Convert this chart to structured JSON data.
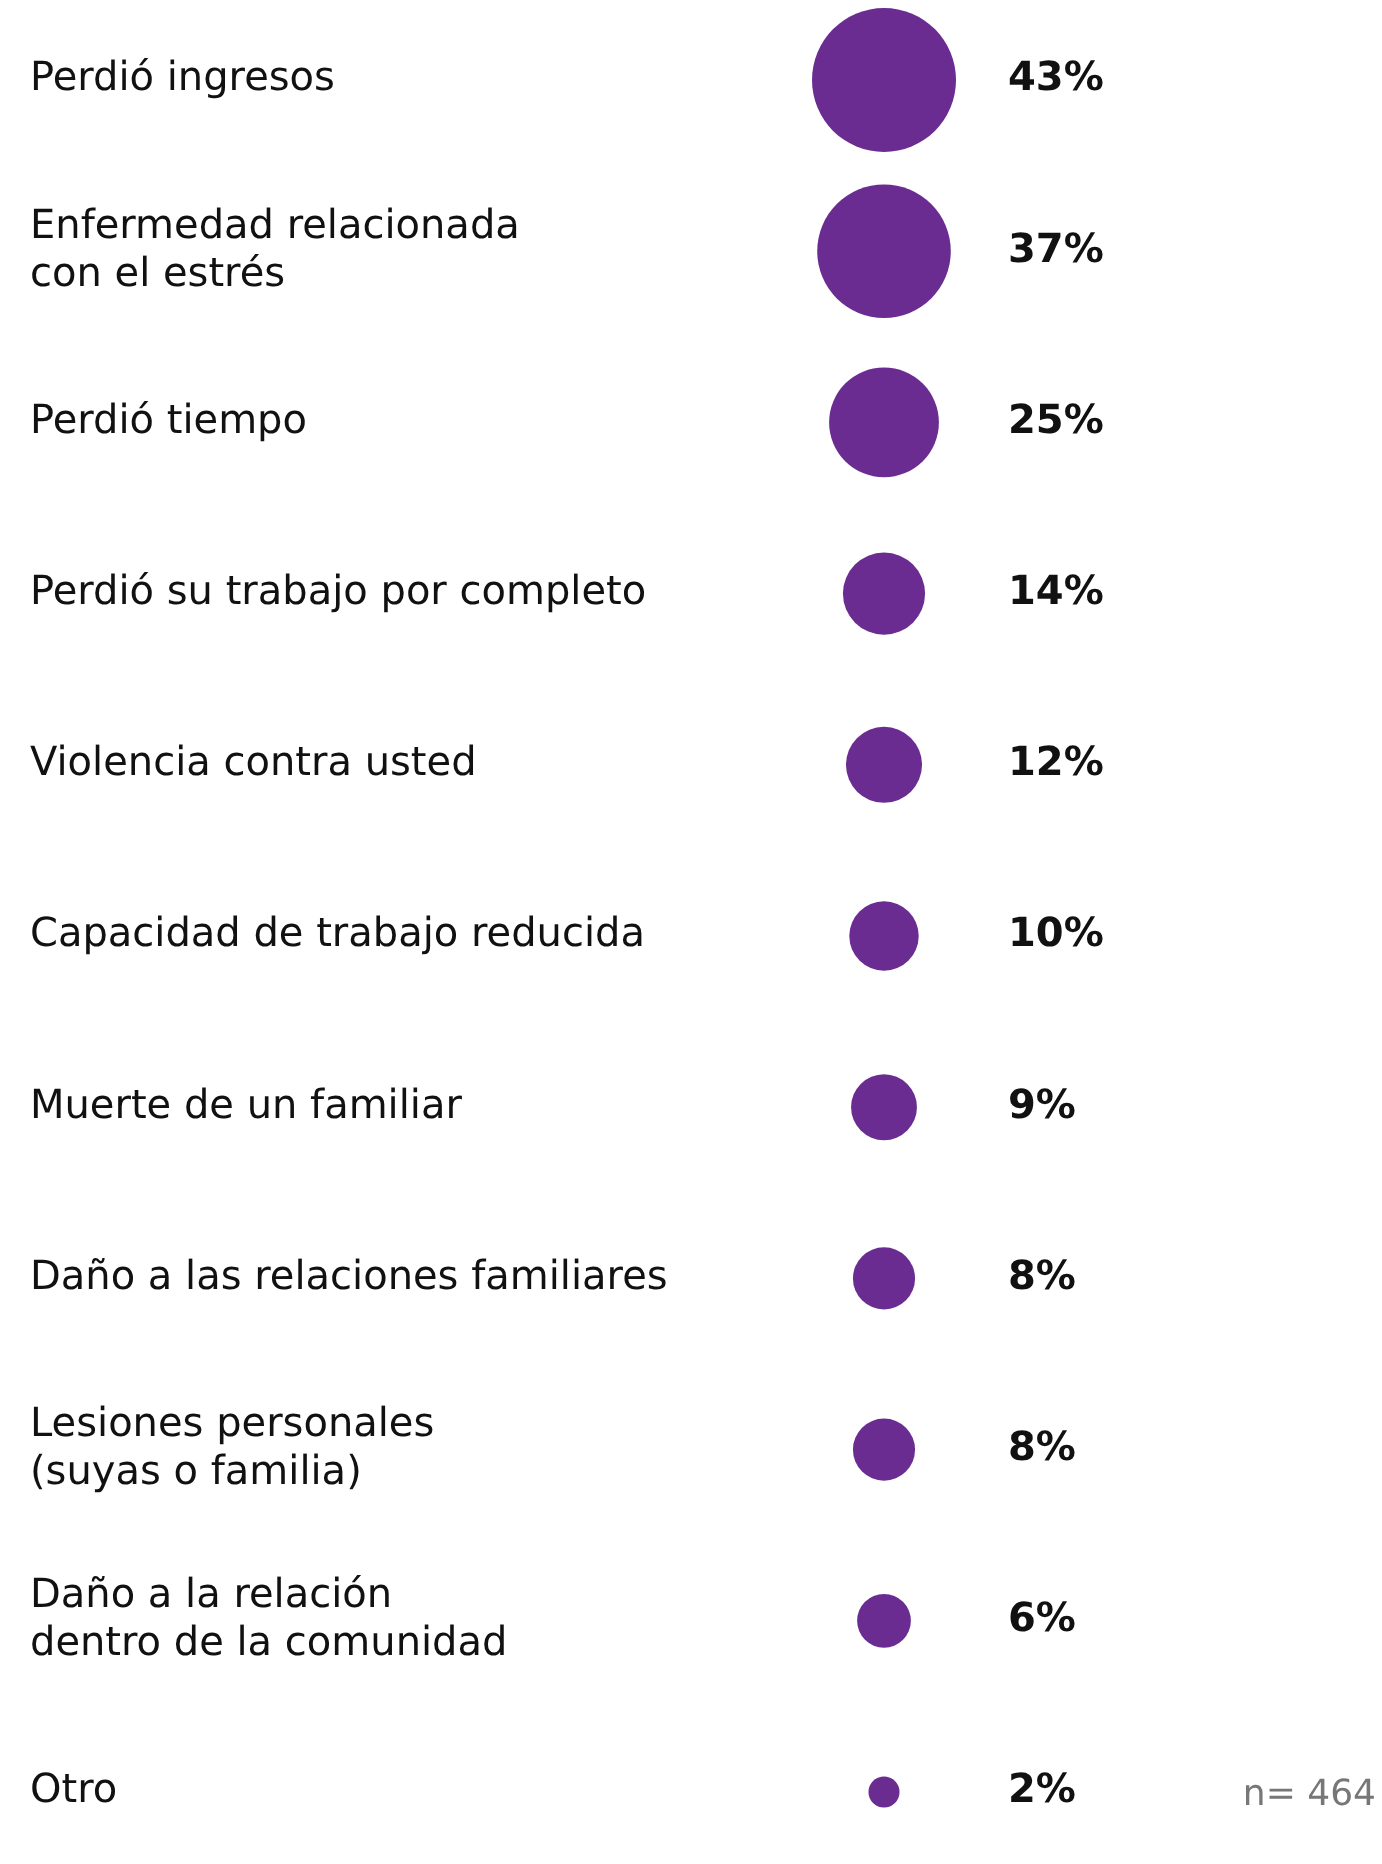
{
  "chart_data": {
    "type": "other",
    "categories": [
      "Perdió ingresos",
      "Enfermedad relacionada\ncon el estrés",
      "Perdió tiempo",
      "Perdió su trabajo por completo",
      "Violencia contra usted",
      "Capacidad de trabajo reducida",
      "Muerte de un familiar",
      "Daño a las relaciones familiares",
      "Lesiones personales\n(suyas o familia)",
      "Daño a la relación\ndentro de la comunidad",
      "Otro"
    ],
    "values": [
      43,
      37,
      25,
      14,
      12,
      10,
      9,
      8,
      8,
      6,
      2
    ],
    "value_labels": [
      "43%",
      "37%",
      "25%",
      "14%",
      "12%",
      "10%",
      "9%",
      "8%",
      "8%",
      "6%",
      "2%"
    ],
    "color": "#6a2c91",
    "annotations": [
      "n= 464"
    ]
  }
}
